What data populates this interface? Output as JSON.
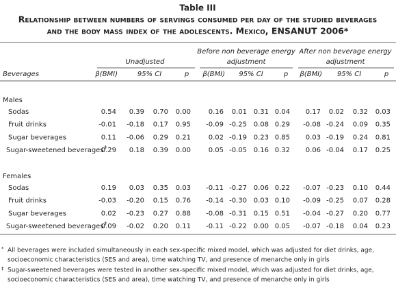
{
  "table_label": "Table III",
  "title": [
    "Relationship between numbers of servings consumed per day of the studied beverages",
    "and the body mass index of the adolescents. Mexico, ENSANUT 2006*"
  ],
  "group_headers": [
    [
      "Unadjusted"
    ],
    [
      "Before non beverage energy",
      "adjustment"
    ],
    [
      "After non beverage energy",
      "adjustment"
    ]
  ],
  "column_headers": {
    "first": "Beverages",
    "beta": "β(BMI)",
    "ci": "95% CI",
    "p": "p"
  },
  "sections": [
    {
      "label": "Males",
      "rows": [
        {
          "label": "Sodas",
          "marker": null,
          "values": [
            "0.54",
            "0.39",
            "0.70",
            "0.00",
            "0.16",
            "0.01",
            "0.31",
            "0.04",
            "0.17",
            "0.02",
            "0.32",
            "0.03"
          ]
        },
        {
          "label": "Fruit drinks",
          "marker": null,
          "values": [
            "-0.01",
            "-0.18",
            "0.17",
            "0.95",
            "-0.09",
            "-0.25",
            "0.08",
            "0.29",
            "-0.08",
            "-0.24",
            "0.09",
            "0.35"
          ]
        },
        {
          "label": "Sugar beverages",
          "marker": null,
          "values": [
            "0.11",
            "-0.06",
            "0.29",
            "0.21",
            "0.02",
            "-0.19",
            "0.23",
            "0.85",
            "0.03",
            "-0.19",
            "0.24",
            "0.81"
          ]
        },
        {
          "label": "Sugar-sweetened beverages",
          "marker": "‡",
          "values": [
            "0.29",
            "0.18",
            "0.39",
            "0.00",
            "0.05",
            "-0.05",
            "0.16",
            "0.32",
            "0.06",
            "-0.04",
            "0.17",
            "0.25"
          ]
        }
      ]
    },
    {
      "label": "Females",
      "rows": [
        {
          "label": "Sodas",
          "marker": null,
          "values": [
            "0.19",
            "0.03",
            "0.35",
            "0.03",
            "-0.11",
            "-0.27",
            "0.06",
            "0.22",
            "-0.07",
            "-0.23",
            "0.10",
            "0.44"
          ]
        },
        {
          "label": "Fruit drinks",
          "marker": null,
          "values": [
            "-0.03",
            "-0.20",
            "0.15",
            "0.76",
            "-0.14",
            "-0.30",
            "0.03",
            "0.10",
            "-0.09",
            "-0.25",
            "0.07",
            "0.28"
          ]
        },
        {
          "label": "Sugar beverages",
          "marker": null,
          "values": [
            "0.02",
            "-0.23",
            "0.27",
            "0.88",
            "-0.08",
            "-0.31",
            "0.15",
            "0.51",
            "-0.04",
            "-0.27",
            "0.20",
            "0.77"
          ]
        },
        {
          "label": "Sugar-sweetened beverages",
          "marker": "‡",
          "values": [
            "0.09",
            "-0.02",
            "0.20",
            "0.11",
            "-0.11",
            "-0.22",
            "0.00",
            "0.05",
            "-0.07",
            "-0.18",
            "0.04",
            "0.23"
          ]
        }
      ]
    }
  ],
  "footnotes": [
    {
      "marker": "*",
      "lines": [
        "All beverages were included simultaneously in each sex-specific mixed model, which was adjusted for diet drinks, age,",
        "socioeconomic characteristics (SES  and area), time watching TV, and presence of menarche only in girls"
      ]
    },
    {
      "marker": "‡",
      "lines": [
        "Sugar-sweetened beverages were tested in another sex-specific mixed model, which was adjusted for diet drinks, age,",
        "socioeconomic characteristics (SES  and area), time watching TV, and presence of menarche only in girls"
      ]
    }
  ]
}
